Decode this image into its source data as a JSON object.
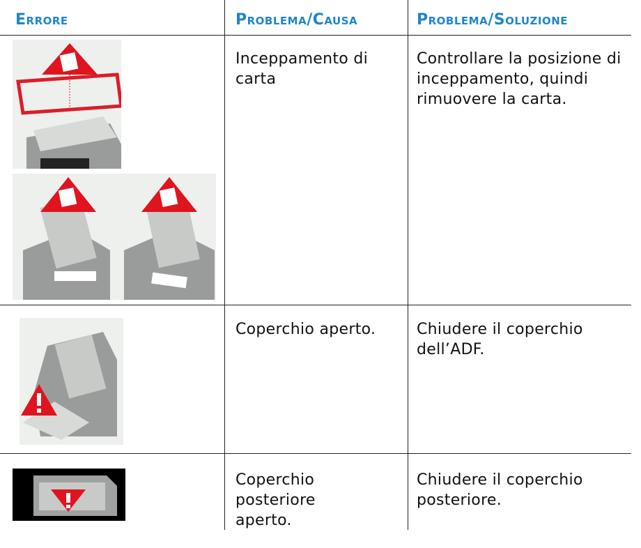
{
  "table": {
    "header": [
      "Errore",
      "Problema/Causa",
      "Problema/Soluzione"
    ],
    "rows": [
      {
        "cause": "Inceppamento di carta",
        "solution": "Controllare la posizione di inceppamento, quindi rimuovere la carta."
      },
      {
        "cause": "Coperchio aperto.",
        "solution": "Chiudere il coperchio dell’ADF."
      },
      {
        "cause": "Coperchio posteriore aperto.",
        "solution": "Chiudere il coperchio posteriore."
      }
    ]
  }
}
